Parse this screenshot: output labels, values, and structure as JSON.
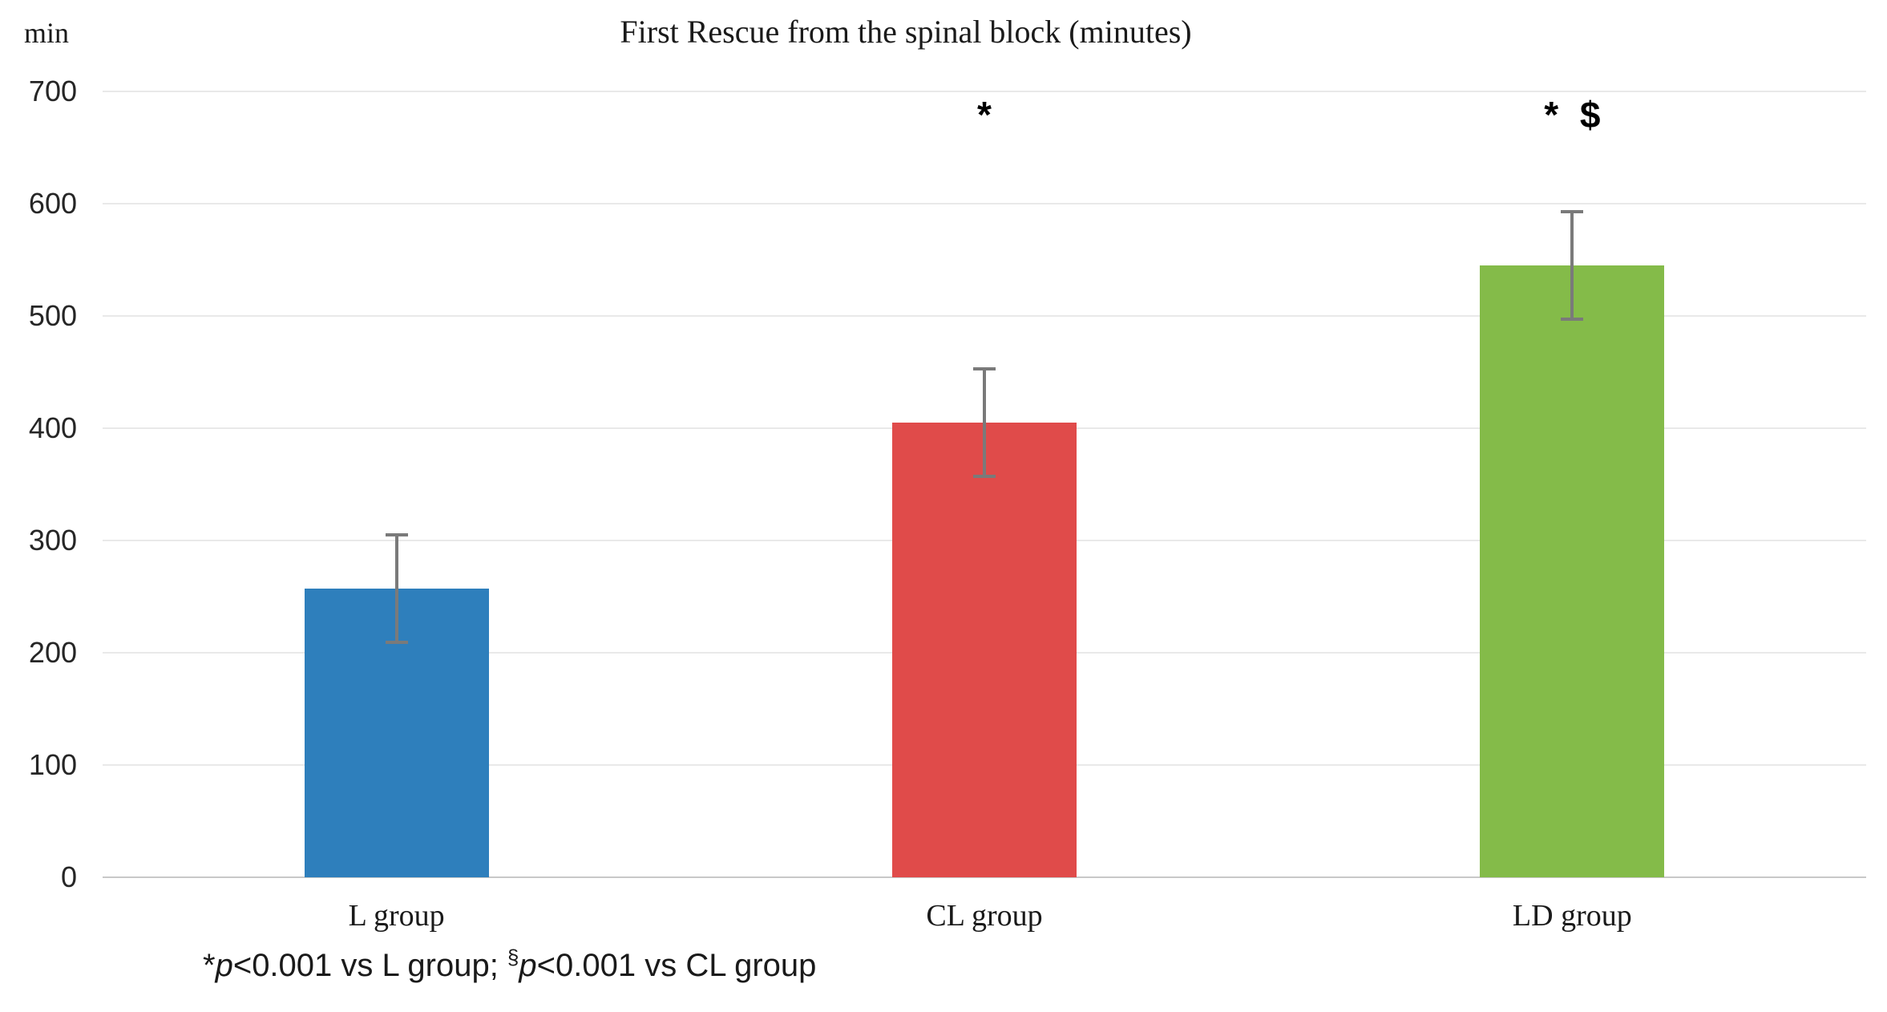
{
  "chart_data": {
    "type": "bar",
    "title": "First Rescue from the spinal block (minutes)",
    "ylabel": "min",
    "categories": [
      "L group",
      "CL group",
      "LD group"
    ],
    "values": [
      257,
      405,
      545
    ],
    "errors": [
      48,
      48,
      48
    ],
    "annotations": [
      "",
      "*",
      "* $"
    ],
    "bar_colors": [
      "#2e7fbc",
      "#e04b4a",
      "#84bb49"
    ],
    "ylim": [
      0,
      700
    ],
    "yticks": [
      0,
      100,
      200,
      300,
      400,
      500,
      600,
      700
    ],
    "grid": true,
    "legend": "none"
  },
  "footnote": {
    "star": "*",
    "p1": "p",
    "t1": "<0.001 vs L group; ",
    "sup": "§",
    "p2": "p",
    "t2": "<0.001 vs CL group"
  },
  "colors": {
    "gridline": "#e9e9e9",
    "axis_line": "#c8c8c8",
    "error_bar": "#7a7a7a",
    "text": "#1a1a1a"
  }
}
